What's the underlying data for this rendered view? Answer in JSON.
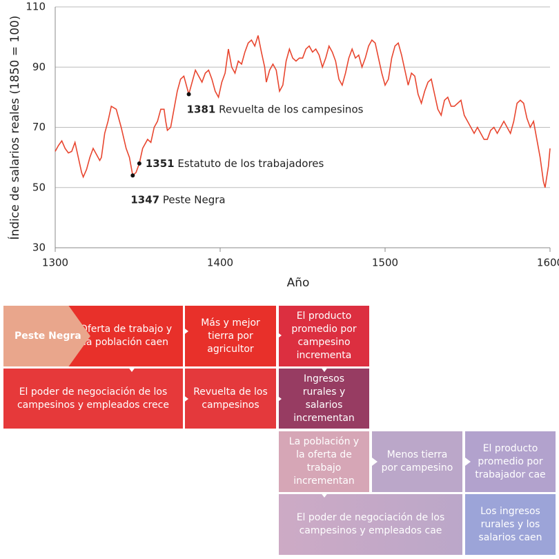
{
  "chart_data": {
    "type": "line",
    "ylabel": "Índice de salarios reales (1850 = 100)",
    "xlabel": "Año",
    "xlim": [
      1300,
      1600
    ],
    "xticks": [
      1300,
      1400,
      1500,
      1600
    ],
    "ylim": [
      30,
      110
    ],
    "yticks": [
      30,
      50,
      70,
      90,
      110
    ],
    "grid": true,
    "series": [
      {
        "color": "#e8452e",
        "x": [
          1300,
          1302,
          1304,
          1306,
          1308,
          1310,
          1312,
          1314,
          1316,
          1317,
          1319,
          1321,
          1323,
          1325,
          1327,
          1328,
          1330,
          1332,
          1334,
          1337,
          1340,
          1343,
          1345,
          1347,
          1349,
          1351,
          1353,
          1356,
          1358,
          1360,
          1362,
          1364,
          1366,
          1367,
          1368,
          1370,
          1372,
          1374,
          1376,
          1378,
          1380,
          1381,
          1383,
          1385,
          1387,
          1389,
          1391,
          1393,
          1395,
          1397,
          1399,
          1401,
          1403,
          1405,
          1407,
          1409,
          1411,
          1413,
          1415,
          1417,
          1419,
          1421,
          1423,
          1425,
          1427,
          1428,
          1430,
          1432,
          1434,
          1436,
          1438,
          1440,
          1442,
          1444,
          1446,
          1448,
          1450,
          1452,
          1454,
          1456,
          1458,
          1460,
          1462,
          1464,
          1466,
          1468,
          1470,
          1472,
          1474,
          1476,
          1478,
          1480,
          1482,
          1484,
          1486,
          1488,
          1490,
          1492,
          1494,
          1496,
          1498,
          1500,
          1502,
          1504,
          1506,
          1508,
          1510,
          1512,
          1514,
          1516,
          1518,
          1520,
          1522,
          1524,
          1526,
          1528,
          1530,
          1532,
          1534,
          1536,
          1538,
          1540,
          1542,
          1544,
          1546,
          1548,
          1550,
          1552,
          1554,
          1556,
          1558,
          1560,
          1562,
          1564,
          1566,
          1568,
          1570,
          1572,
          1574,
          1576,
          1578,
          1580,
          1582,
          1584,
          1586,
          1588,
          1590,
          1592,
          1594,
          1596,
          1597,
          1599,
          1600
        ],
        "values": [
          62,
          64,
          65.5,
          63,
          61.5,
          62,
          65,
          60,
          55,
          53.5,
          56,
          60,
          63,
          61,
          59,
          60,
          68,
          72,
          77,
          76,
          70,
          63,
          60,
          54,
          55,
          58,
          63,
          66,
          65,
          70,
          72,
          76,
          76,
          72,
          69,
          70,
          76,
          82,
          86,
          87,
          83,
          81,
          85,
          89,
          87,
          85,
          88,
          89,
          86,
          82,
          80,
          85,
          88,
          96,
          90,
          88,
          92,
          91,
          95,
          98,
          99,
          97,
          100.5,
          95,
          90,
          85,
          89,
          91,
          89,
          82,
          84,
          92,
          96,
          93,
          92,
          93,
          93,
          96,
          97,
          95,
          96,
          94,
          90,
          93,
          97,
          95,
          92,
          86,
          84,
          88,
          93,
          96,
          93,
          94,
          90,
          93,
          97,
          99,
          98,
          93,
          88,
          84,
          86,
          93,
          97,
          98,
          94,
          89,
          84,
          88,
          87,
          81,
          78,
          82,
          85,
          86,
          81,
          76,
          74,
          79,
          80,
          77,
          77,
          78,
          79,
          74,
          72,
          70,
          68,
          70,
          68,
          66,
          66,
          69,
          70,
          68,
          70,
          72,
          70,
          68,
          72,
          78,
          79,
          78,
          73,
          70,
          72,
          66,
          60,
          52,
          50,
          57,
          63
        ]
      }
    ],
    "annotations": [
      {
        "x": 1381,
        "y": 81,
        "label": "Revuelta de los campesinos"
      },
      {
        "x": 1351,
        "y": 58,
        "label": "Estatuto de los trabajadores"
      },
      {
        "x": 1347,
        "y": 54,
        "label": "Peste Negra"
      }
    ]
  },
  "diagram": {
    "boxes": [
      {
        "text": "Oferta de trabajo y la población caen",
        "color": "#e8302a"
      },
      {
        "text": "Peste Negra",
        "color": "#e9a68c"
      },
      {
        "text": "Más y mejor tierra por agricultor",
        "color": "#e8302a"
      },
      {
        "text": "El producto promedio por campesino incrementa",
        "color": "#dc2f40"
      },
      {
        "text": "El poder de negociación de los campesinos y empleados crece",
        "color": "#e6393a"
      },
      {
        "text": "Revuelta de los campesinos",
        "color": "#e4393c"
      },
      {
        "text": "Ingresos rurales y salarios incrementan",
        "color": "#973c62"
      },
      {
        "text": "La población y la oferta de trabajo incrementan",
        "color": "#d6a6b6"
      },
      {
        "text": "Menos tierra por campesino",
        "color": "#bba7c9"
      },
      {
        "text": "El producto promedio por trabajador cae",
        "color": "#b2a2cd"
      },
      {
        "text": "El poder de negociación de los campesinos y empleados cae",
        "color": "#cdaac5"
      },
      {
        "text": "Los ingresos rurales y los salarios caen",
        "color": "#9ca4d8"
      }
    ]
  }
}
